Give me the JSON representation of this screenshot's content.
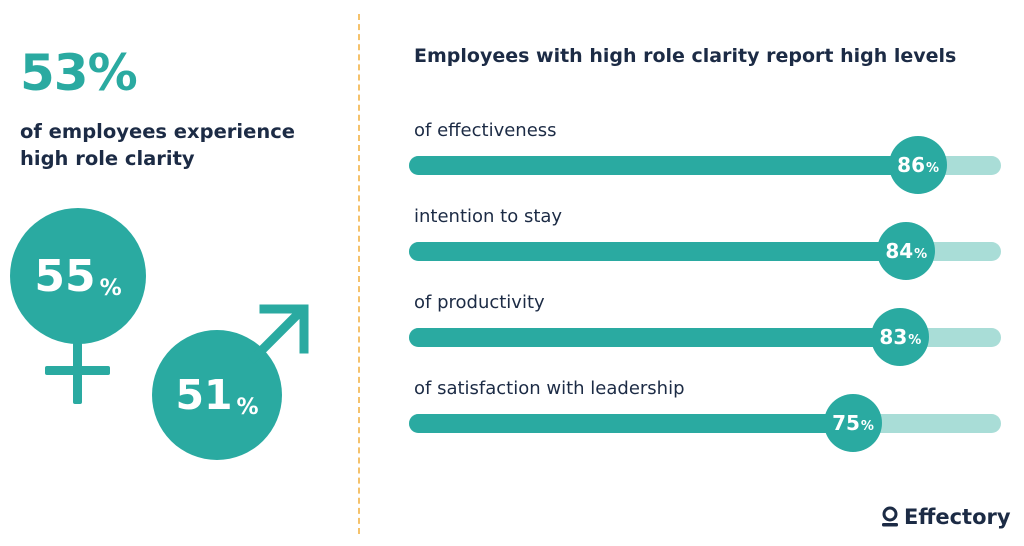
{
  "summary": {
    "headline_value": "53%",
    "headline_text": "of employees experience high role clarity"
  },
  "gender": {
    "female_value": "55",
    "male_value": "51",
    "percent_sign": "%"
  },
  "brand": {
    "logo_text": "Effectory"
  },
  "colors": {
    "teal": "#2aaaa1",
    "light_teal": "#a9ddd7",
    "navy": "#1c2b45",
    "divider": "#f5c26b"
  },
  "chart_data": {
    "type": "bar",
    "orientation": "horizontal",
    "title": "Employees with high role clarity report high levels",
    "categories": [
      "of effectiveness",
      "intention to stay",
      "of productivity",
      "of satisfaction with leadership"
    ],
    "values": [
      86,
      84,
      83,
      75
    ],
    "value_labels": [
      "86",
      "84",
      "83",
      "75"
    ],
    "unit": "%",
    "xlim": [
      0,
      100
    ]
  }
}
